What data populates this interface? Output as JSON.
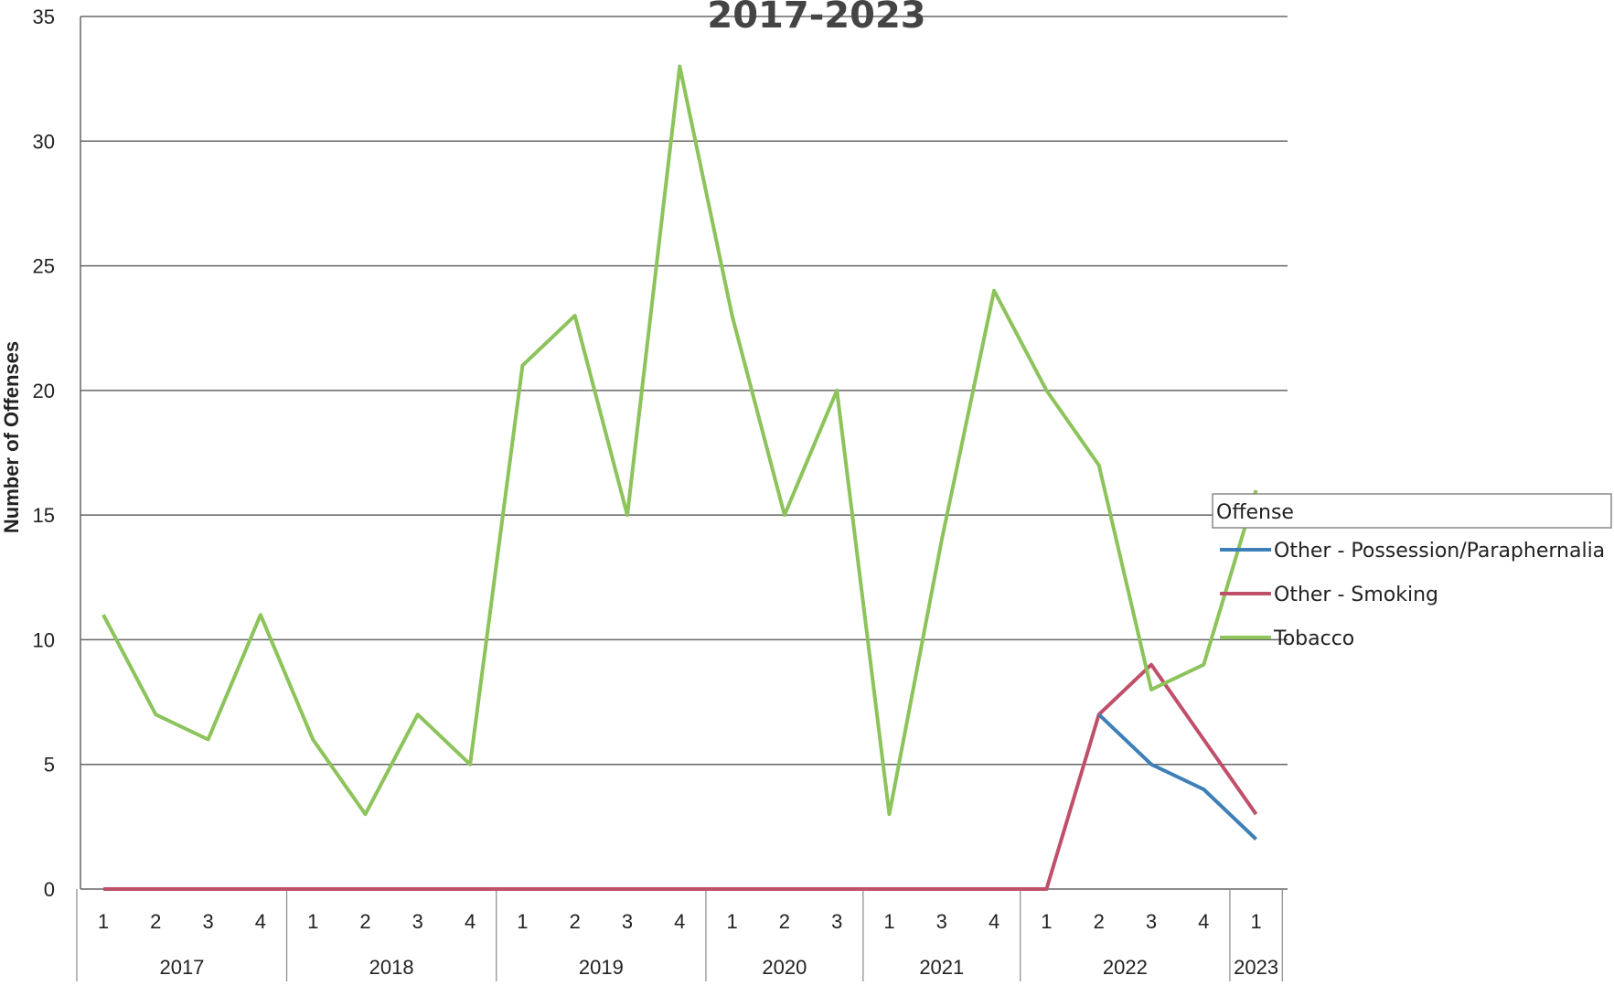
{
  "chart_data": {
    "type": "line",
    "title": "2017-2023",
    "ylabel": "Number of Offenses",
    "xlabel": "",
    "ylim": [
      0,
      35
    ],
    "yticks": [
      0,
      5,
      10,
      15,
      20,
      25,
      30,
      35
    ],
    "grid": true,
    "legend": {
      "title": "Offense",
      "placement": "right"
    },
    "years": [
      {
        "label": "2017",
        "quarters": [
          "1",
          "2",
          "3",
          "4"
        ]
      },
      {
        "label": "2018",
        "quarters": [
          "1",
          "2",
          "3",
          "4"
        ]
      },
      {
        "label": "2019",
        "quarters": [
          "1",
          "2",
          "3",
          "4"
        ]
      },
      {
        "label": "2020",
        "quarters": [
          "1",
          "2",
          "3"
        ]
      },
      {
        "label": "2021",
        "quarters": [
          "1",
          "3",
          "4"
        ]
      },
      {
        "label": "2022",
        "quarters": [
          "1",
          "2",
          "3",
          "4"
        ]
      },
      {
        "label": "2023",
        "quarters": [
          "1"
        ]
      }
    ],
    "series": [
      {
        "name": "Other - Possession/Paraphernalia",
        "color": "#3d7fb8",
        "values": [
          null,
          null,
          null,
          null,
          null,
          null,
          null,
          null,
          null,
          null,
          null,
          null,
          null,
          null,
          null,
          null,
          null,
          null,
          null,
          7,
          5,
          4,
          2
        ]
      },
      {
        "name": "Other - Smoking",
        "color": "#c0506a",
        "values": [
          0,
          0,
          0,
          0,
          0,
          0,
          0,
          0,
          0,
          0,
          0,
          0,
          0,
          0,
          0,
          0,
          0,
          0,
          0,
          7,
          9,
          6,
          3
        ]
      },
      {
        "name": "Tobacco",
        "color": "#8cc35a",
        "values": [
          11,
          7,
          6,
          11,
          6,
          3,
          7,
          5,
          21,
          23,
          15,
          33,
          23,
          15,
          20,
          3,
          14,
          24,
          20,
          17,
          8,
          9,
          16
        ]
      }
    ]
  }
}
